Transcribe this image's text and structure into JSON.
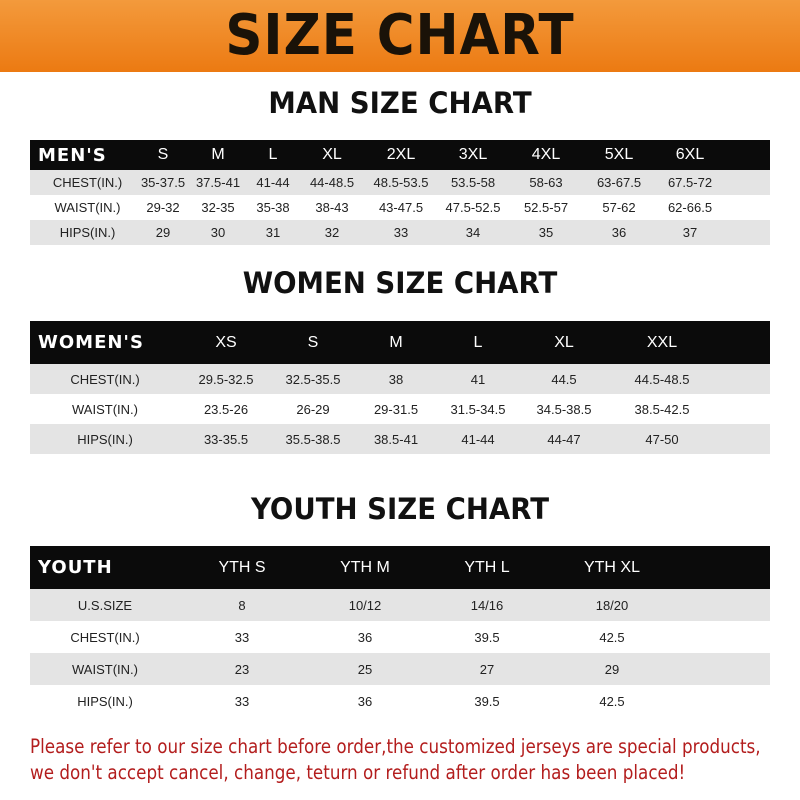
{
  "title": "SIZE CHART",
  "tables": [
    {
      "title": "MAN SIZE CHART",
      "header": "MEN'S",
      "sizes": [
        "S",
        "M",
        "L",
        "XL",
        "2XL",
        "3XL",
        "4XL",
        "5XL",
        "6XL"
      ],
      "rows": [
        {
          "label": "CHEST(IN.)",
          "values": [
            "35-37.5",
            "37.5-41",
            "41-44",
            "44-48.5",
            "48.5-53.5",
            "53.5-58",
            "58-63",
            "63-67.5",
            "67.5-72"
          ]
        },
        {
          "label": "WAIST(IN.)",
          "values": [
            "29-32",
            "32-35",
            "35-38",
            "38-43",
            "43-47.5",
            "47.5-52.5",
            "52.5-57",
            "57-62",
            "62-66.5"
          ]
        },
        {
          "label": "HIPS(IN.)",
          "values": [
            "29",
            "30",
            "31",
            "32",
            "33",
            "34",
            "35",
            "36",
            "37"
          ]
        }
      ]
    },
    {
      "title": "WOMEN SIZE CHART",
      "header": "WOMEN'S",
      "sizes": [
        "XS",
        "S",
        "M",
        "L",
        "XL",
        "XXL"
      ],
      "rows": [
        {
          "label": "CHEST(IN.)",
          "values": [
            "29.5-32.5",
            "32.5-35.5",
            "38",
            "41",
            "44.5",
            "44.5-48.5"
          ]
        },
        {
          "label": "WAIST(IN.)",
          "values": [
            "23.5-26",
            "26-29",
            "29-31.5",
            "31.5-34.5",
            "34.5-38.5",
            "38.5-42.5"
          ]
        },
        {
          "label": "HIPS(IN.)",
          "values": [
            "33-35.5",
            "35.5-38.5",
            "38.5-41",
            "41-44",
            "44-47",
            "47-50"
          ]
        }
      ]
    },
    {
      "title": "YOUTH SIZE CHART",
      "header": "YOUTH",
      "sizes": [
        "YTH S",
        "YTH M",
        "YTH L",
        "YTH XL"
      ],
      "rows": [
        {
          "label": "U.S.SIZE",
          "values": [
            "8",
            "10/12",
            "14/16",
            "18/20"
          ]
        },
        {
          "label": "CHEST(IN.)",
          "values": [
            "33",
            "36",
            "39.5",
            "42.5"
          ]
        },
        {
          "label": "WAIST(IN.)",
          "values": [
            "23",
            "25",
            "27",
            "29"
          ]
        },
        {
          "label": "HIPS(IN.)",
          "values": [
            "33",
            "36",
            "39.5",
            "42.5"
          ]
        }
      ]
    }
  ],
  "footer": {
    "line1": "Please refer to our size chart before order,the customized jerseys are special products,",
    "line2": "we don't accept cancel, change, teturn or refund after order has been placed!"
  }
}
